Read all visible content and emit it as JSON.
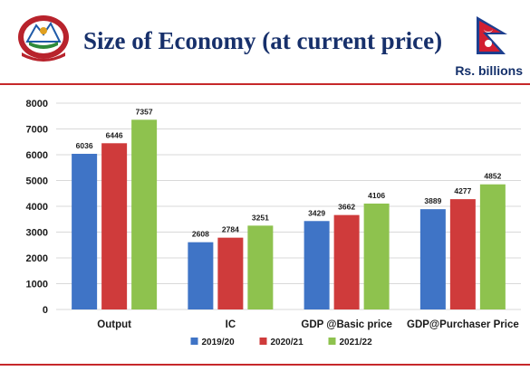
{
  "header": {
    "title": "Size of Economy (at current price)",
    "unit": "Rs. billions",
    "emblem_icon": "nepal-emblem-icon",
    "flag_icon": "nepal-flag-icon"
  },
  "colors": {
    "series": [
      "#3f74c6",
      "#cf3b3b",
      "#8ec24e"
    ],
    "title": "#17306b",
    "rule": "#c6282a"
  },
  "chart_data": {
    "type": "bar",
    "categories": [
      "Output",
      "IC",
      "GDP @Basic price",
      "GDP@Purchaser Price"
    ],
    "series": [
      {
        "name": "2019/20",
        "values": [
          6036,
          2608,
          3429,
          3889
        ]
      },
      {
        "name": "2020/21",
        "values": [
          6446,
          2784,
          3662,
          4277
        ]
      },
      {
        "name": "2021/22",
        "values": [
          7357,
          3251,
          4106,
          4852
        ]
      }
    ],
    "title": "",
    "xlabel": "",
    "ylabel": "",
    "ylim": [
      0,
      8000
    ],
    "yticks": [
      0,
      1000,
      2000,
      3000,
      4000,
      5000,
      6000,
      7000,
      8000
    ],
    "grid": true,
    "legend_position": "bottom-center"
  }
}
